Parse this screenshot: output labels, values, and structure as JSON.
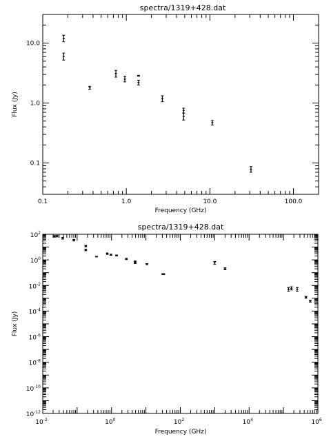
{
  "chart_data": [
    {
      "type": "scatter",
      "title": "spectra/1319+428.dat",
      "xlabel": "Frequency (GHz)",
      "ylabel": "Flux (Jy)",
      "xscale": "log",
      "yscale": "log",
      "xlim": [
        0.1,
        200
      ],
      "ylim": [
        0.03,
        30
      ],
      "x_tick_labels": [
        "0.1",
        "1.0",
        "10.0",
        "100.0"
      ],
      "y_tick_labels": [
        "0.1",
        "1.0",
        "10.0"
      ],
      "grid": false,
      "series": [
        {
          "points": [
            {
              "x": 0.178,
              "y": 12.0,
              "lo": 10.5,
              "hi": 13.5
            },
            {
              "x": 0.178,
              "y": 6.0,
              "lo": 5.2,
              "hi": 6.8
            },
            {
              "x": 0.365,
              "y": 1.8,
              "lo": 1.7,
              "hi": 1.9
            },
            {
              "x": 0.75,
              "y": 3.1,
              "lo": 2.7,
              "hi": 3.5
            },
            {
              "x": 0.96,
              "y": 2.5,
              "lo": 2.25,
              "hi": 2.8
            },
            {
              "x": 1.4,
              "y": 2.85,
              "lo": 2.8,
              "hi": 2.9
            },
            {
              "x": 1.4,
              "y": 2.2,
              "lo": 2.0,
              "hi": 2.4
            },
            {
              "x": 2.7,
              "y": 1.18,
              "lo": 1.05,
              "hi": 1.32
            },
            {
              "x": 4.85,
              "y": 0.75,
              "lo": 0.68,
              "hi": 0.82
            },
            {
              "x": 4.85,
              "y": 0.6,
              "lo": 0.52,
              "hi": 0.68
            },
            {
              "x": 10.7,
              "y": 0.47,
              "lo": 0.43,
              "hi": 0.51
            },
            {
              "x": 31.0,
              "y": 0.078,
              "lo": 0.07,
              "hi": 0.087
            }
          ]
        }
      ]
    },
    {
      "type": "scatter",
      "title": "spectra/1319+428.dat",
      "xlabel": "Frequency (GHz)",
      "ylabel": "Flux (Jy)",
      "xscale": "log",
      "yscale": "log",
      "xlim": [
        0.01,
        1000000
      ],
      "ylim": [
        1e-12,
        100
      ],
      "x_ticks": [
        {
          "base": "10",
          "exp": "-2"
        },
        {
          "base": "10",
          "exp": "0"
        },
        {
          "base": "10",
          "exp": "2"
        },
        {
          "base": "10",
          "exp": "4"
        },
        {
          "base": "10",
          "exp": "6"
        }
      ],
      "y_ticks": [
        {
          "base": "10",
          "exp": "-12"
        },
        {
          "base": "10",
          "exp": "-10"
        },
        {
          "base": "10",
          "exp": "-8"
        },
        {
          "base": "10",
          "exp": "-6"
        },
        {
          "base": "10",
          "exp": "-4"
        },
        {
          "base": "10",
          "exp": "-2"
        },
        {
          "base": "10",
          "exp": "0"
        },
        {
          "base": "10",
          "exp": "2"
        }
      ],
      "grid": false,
      "series": [
        {
          "points": [
            {
              "x": 0.022,
              "y": 70,
              "lo": 60,
              "hi": 80
            },
            {
              "x": 0.026,
              "y": 72,
              "lo": 62,
              "hi": 82
            },
            {
              "x": 0.038,
              "y": 50,
              "lo": 42,
              "hi": 58
            },
            {
              "x": 0.08,
              "y": 35,
              "lo": 30,
              "hi": 40
            },
            {
              "x": 0.178,
              "y": 12,
              "lo": 10.5,
              "hi": 13.5
            },
            {
              "x": 0.178,
              "y": 6,
              "lo": 5.2,
              "hi": 6.8
            },
            {
              "x": 0.365,
              "y": 1.8,
              "lo": 1.7,
              "hi": 1.9
            },
            {
              "x": 0.75,
              "y": 3.1,
              "lo": 2.7,
              "hi": 3.5
            },
            {
              "x": 0.96,
              "y": 2.5,
              "lo": 2.25,
              "hi": 2.8
            },
            {
              "x": 1.4,
              "y": 2.2,
              "lo": 2.0,
              "hi": 2.4
            },
            {
              "x": 2.7,
              "y": 1.18,
              "lo": 1.05,
              "hi": 1.32
            },
            {
              "x": 4.85,
              "y": 0.75,
              "lo": 0.68,
              "hi": 0.82
            },
            {
              "x": 4.85,
              "y": 0.6,
              "lo": 0.52,
              "hi": 0.68
            },
            {
              "x": 10.7,
              "y": 0.47,
              "lo": 0.43,
              "hi": 0.51
            },
            {
              "x": 31.0,
              "y": 0.078,
              "lo": 0.072,
              "hi": 0.084
            },
            {
              "x": 33.0,
              "y": 0.078,
              "lo": 0.072,
              "hi": 0.084
            },
            {
              "x": 1000,
              "y": 0.6,
              "lo": 0.45,
              "hi": 0.75
            },
            {
              "x": 2000,
              "y": 0.2,
              "lo": 0.17,
              "hi": 0.24
            },
            {
              "x": 140000,
              "y": 0.005,
              "lo": 0.0035,
              "hi": 0.007
            },
            {
              "x": 170000,
              "y": 0.006,
              "lo": 0.0045,
              "hi": 0.008
            },
            {
              "x": 250000,
              "y": 0.005,
              "lo": 0.0035,
              "hi": 0.007
            },
            {
              "x": 450000,
              "y": 0.0012,
              "lo": 0.001,
              "hi": 0.0014
            },
            {
              "x": 600000,
              "y": 0.0006,
              "lo": 0.0005,
              "hi": 0.0007
            }
          ]
        }
      ]
    }
  ]
}
